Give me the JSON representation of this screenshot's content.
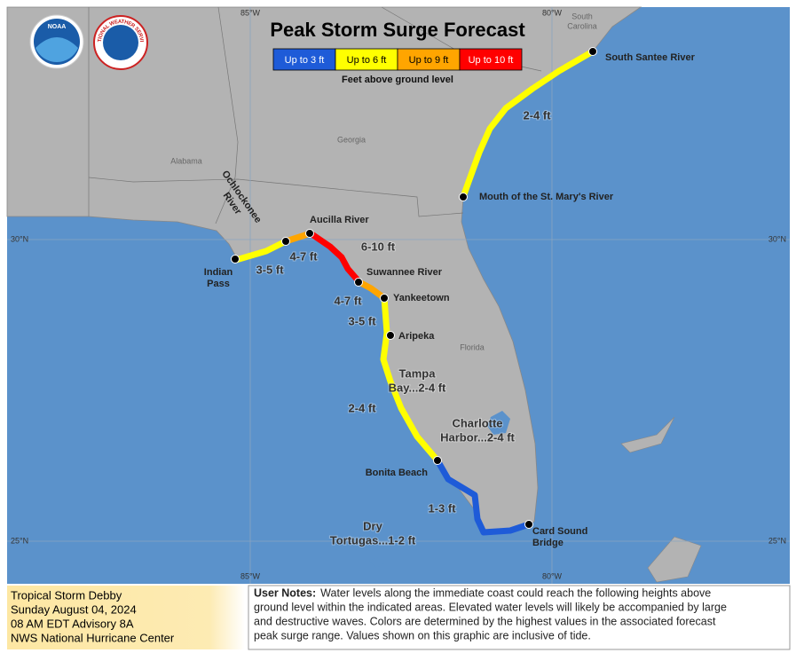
{
  "map": {
    "title": "Peak Storm Surge Forecast",
    "logos": {
      "noaa": "NOAA",
      "nws": "NATIONAL WEATHER SERVICE"
    },
    "legend": {
      "items": [
        {
          "label": "Up to 3 ft",
          "color": "#1e5bd8"
        },
        {
          "label": "Up to 6 ft",
          "color": "#ffff00"
        },
        {
          "label": "Up to 9 ft",
          "color": "#ffa500"
        },
        {
          "label": "Up to 10 ft",
          "color": "#ff0000"
        }
      ],
      "caption": "Feet above ground level"
    },
    "gridlines": [
      "85°W",
      "80°W",
      "30°N",
      "25°N"
    ],
    "states": [
      {
        "lines": [
          "South",
          "Carolina"
        ]
      },
      {
        "lines": [
          "Georgia"
        ]
      },
      {
        "lines": [
          "Alabama"
        ]
      },
      {
        "lines": [
          "Florida"
        ]
      }
    ],
    "locations": [
      {
        "lines": [
          "South Santee River"
        ]
      },
      {
        "lines": [
          "Mouth of the St. Mary's River"
        ]
      },
      {
        "lines": [
          "Aucilla River"
        ]
      },
      {
        "lines": [
          "Ochlockonee",
          "River"
        ]
      },
      {
        "lines": [
          "Indian",
          "Pass"
        ]
      },
      {
        "lines": [
          "Suwannee River"
        ]
      },
      {
        "lines": [
          "Yankeetown"
        ]
      },
      {
        "lines": [
          "Aripeka"
        ]
      },
      {
        "lines": [
          "Bonita Beach"
        ]
      },
      {
        "lines": [
          "Card Sound",
          "Bridge"
        ]
      }
    ],
    "surge_labels": [
      {
        "lines": [
          "2-4 ft"
        ]
      },
      {
        "lines": [
          "6-10 ft"
        ]
      },
      {
        "lines": [
          "4-7 ft"
        ]
      },
      {
        "lines": [
          "3-5 ft"
        ]
      },
      {
        "lines": [
          "4-7 ft"
        ]
      },
      {
        "lines": [
          "3-5 ft"
        ]
      },
      {
        "lines": [
          "Tampa",
          "Bay...2-4 ft"
        ]
      },
      {
        "lines": [
          "2-4 ft"
        ]
      },
      {
        "lines": [
          "Charlotte",
          "Harbor...2-4 ft"
        ]
      },
      {
        "lines": [
          "1-3 ft"
        ]
      },
      {
        "lines": [
          "Dry",
          "Tortugas...1-2 ft"
        ]
      }
    ]
  },
  "info": {
    "lines": [
      "Tropical Storm Debby",
      "Sunday August 04, 2024",
      "08 AM EDT Advisory 8A",
      "NWS National Hurricane Center"
    ]
  },
  "notes": {
    "label": "User Notes:",
    "lines": [
      "Water levels along the immediate coast could reach the following heights above",
      "ground level within the indicated areas. Elevated water levels will likely be accompanied by large",
      "and destructive waves. Colors are determined by the highest values in the associated forecast",
      "peak surge range. Values shown on this graphic are inclusive of tide."
    ]
  }
}
